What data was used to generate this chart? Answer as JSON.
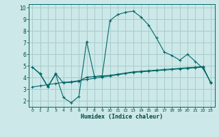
{
  "xlabel": "Humidex (Indice chaleur)",
  "xlim": [
    -0.5,
    23.5
  ],
  "ylim": [
    1.5,
    10.3
  ],
  "background_color": "#cce8e8",
  "grid_color": "#a8cccc",
  "line_color": "#006666",
  "x_ticks": [
    0,
    1,
    2,
    3,
    4,
    5,
    6,
    7,
    8,
    9,
    10,
    11,
    12,
    13,
    14,
    15,
    16,
    17,
    18,
    19,
    20,
    21,
    22,
    23
  ],
  "y_ticks": [
    2,
    3,
    4,
    5,
    6,
    7,
    8,
    9,
    10
  ],
  "curve1_x": [
    0,
    1,
    2,
    3,
    4,
    5,
    6,
    7,
    8,
    9,
    10,
    11,
    12,
    13,
    14,
    15,
    16,
    17,
    18,
    19,
    20,
    21,
    22,
    23
  ],
  "curve1_y": [
    4.9,
    4.3,
    3.2,
    4.3,
    2.3,
    1.85,
    2.4,
    7.1,
    4.1,
    4.15,
    8.9,
    9.4,
    9.6,
    9.7,
    9.2,
    8.5,
    7.4,
    6.2,
    5.9,
    5.5,
    6.0,
    5.4,
    4.8,
    3.6
  ],
  "curve2_x": [
    0,
    1,
    2,
    3,
    4,
    5,
    6,
    7,
    8,
    9,
    10,
    11,
    12,
    13,
    14,
    15,
    16,
    17,
    18,
    19,
    20,
    21,
    22,
    23
  ],
  "curve2_y": [
    3.2,
    3.3,
    3.4,
    3.5,
    3.6,
    3.65,
    3.75,
    3.85,
    3.95,
    4.05,
    4.15,
    4.25,
    4.35,
    4.45,
    4.5,
    4.55,
    4.6,
    4.65,
    4.7,
    4.75,
    4.8,
    4.85,
    4.9,
    3.55
  ],
  "curve3_x": [
    0,
    1,
    2,
    3,
    4,
    5,
    6,
    7,
    8,
    9,
    10,
    11,
    12,
    13,
    14,
    15,
    16,
    17,
    18,
    19,
    20,
    21,
    22,
    23
  ],
  "curve3_y": [
    4.9,
    4.35,
    3.25,
    4.35,
    3.55,
    3.6,
    3.7,
    4.05,
    4.1,
    4.15,
    4.2,
    4.3,
    4.4,
    4.5,
    4.55,
    4.6,
    4.65,
    4.7,
    4.75,
    4.8,
    4.85,
    4.9,
    4.95,
    3.55
  ]
}
